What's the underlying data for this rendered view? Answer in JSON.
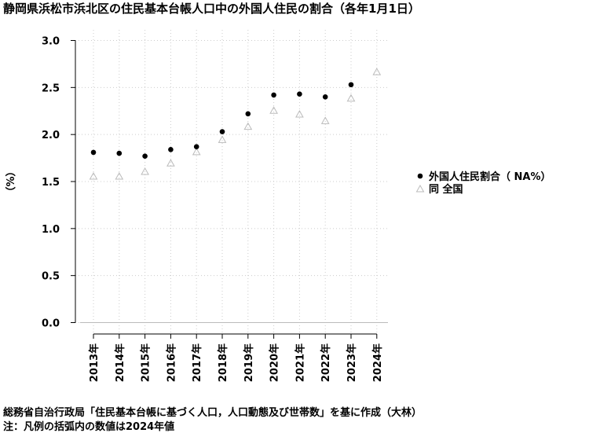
{
  "title": "静岡県浜松市浜北区の住民基本台帳人口中の外国人住民の割合（各年1月1日）",
  "footer": {
    "source": "総務省自治行政局「住民基本台帳に基づく人口，人口動態及び世帯数」を基に作成（大林）",
    "note": "注：凡例の括弧内の数値は2024年値"
  },
  "chart_data": {
    "type": "scatter",
    "title": "静岡県浜松市浜北区の住民基本台帳人口中の外国人住民の割合（各年1月1日）",
    "ylabel": "（%）",
    "xlabel": "",
    "categories": [
      "2013年",
      "2014年",
      "2015年",
      "2016年",
      "2017年",
      "2018年",
      "2019年",
      "2020年",
      "2021年",
      "2022年",
      "2023年",
      "2024年"
    ],
    "ylim": [
      0,
      3.0
    ],
    "yticks": [
      "0.0",
      "0.5",
      "1.0",
      "1.5",
      "2.0",
      "2.5",
      "3.0"
    ],
    "grid": true,
    "legend_position": "right",
    "series": [
      {
        "name": "外国人住民割合（ NA%）",
        "marker": "filled-circle",
        "color": "#000000",
        "values": [
          1.81,
          1.8,
          1.77,
          1.84,
          1.87,
          2.03,
          2.22,
          2.42,
          2.43,
          2.4,
          2.53,
          null
        ]
      },
      {
        "name": "同 全国",
        "marker": "open-triangle",
        "color": "#bbbbbb",
        "values": [
          1.55,
          1.55,
          1.6,
          1.69,
          1.81,
          1.94,
          2.08,
          2.25,
          2.21,
          2.14,
          2.38,
          2.66
        ]
      }
    ]
  }
}
